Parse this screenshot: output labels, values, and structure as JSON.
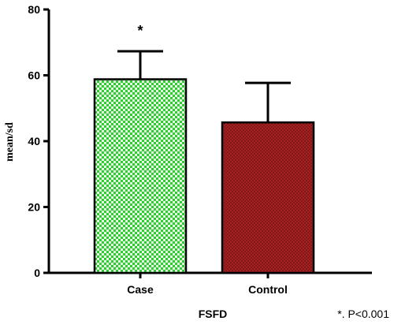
{
  "chart_data": {
    "type": "bar",
    "title": "",
    "xlabel": "FSFD",
    "ylabel": "mean/sd",
    "ylim": [
      0,
      80
    ],
    "yticks": [
      0,
      20,
      40,
      60,
      80
    ],
    "categories": [
      "Case",
      "Control"
    ],
    "values": [
      58.8,
      45.7
    ],
    "error_upper": [
      8.5,
      12.0
    ],
    "bar_colors": [
      "#22cc22",
      "#9b1c1c"
    ],
    "bar_pattern": [
      "checkered",
      "dotted"
    ],
    "significance_markers": [
      "*",
      ""
    ],
    "footnote": "*. P<0.001",
    "grid": false,
    "legend": "none"
  }
}
